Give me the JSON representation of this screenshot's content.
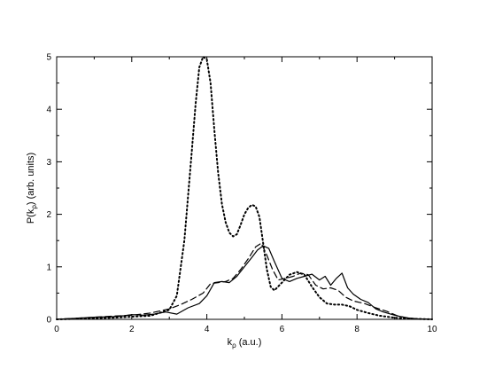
{
  "chart_data": {
    "type": "line",
    "title": "",
    "xlabel": {
      "main": "k",
      "sub": "ρ",
      "suffix": " (a.u.)"
    },
    "ylabel": {
      "main": "P(k",
      "sub": "ρ",
      "suffix": ") (arb. units)"
    },
    "xlim": [
      0,
      10
    ],
    "ylim": [
      0,
      5
    ],
    "xticks": [
      0,
      2,
      4,
      6,
      8,
      10
    ],
    "yticks": [
      0,
      1,
      2,
      3,
      4,
      5
    ],
    "grid": false,
    "legend": "none",
    "series": [
      {
        "style": "dotted",
        "color": "#000000",
        "x": [
          0.0,
          0.5,
          1.0,
          1.5,
          2.0,
          2.5,
          3.0,
          3.2,
          3.4,
          3.6,
          3.7,
          3.8,
          3.9,
          4.0,
          4.1,
          4.2,
          4.3,
          4.4,
          4.5,
          4.6,
          4.7,
          4.8,
          4.9,
          5.0,
          5.1,
          5.2,
          5.3,
          5.4,
          5.5,
          5.6,
          5.7,
          5.8,
          6.0,
          6.2,
          6.4,
          6.6,
          6.8,
          7.0,
          7.2,
          7.4,
          7.6,
          7.8,
          8.0,
          8.3,
          8.6,
          9.0,
          9.5,
          10.0
        ],
        "y": [
          0.0,
          0.01,
          0.02,
          0.03,
          0.05,
          0.07,
          0.18,
          0.45,
          1.5,
          3.2,
          4.1,
          4.8,
          5.0,
          4.95,
          4.5,
          3.6,
          2.8,
          2.2,
          1.85,
          1.65,
          1.58,
          1.62,
          1.8,
          2.0,
          2.12,
          2.18,
          2.15,
          1.95,
          1.45,
          0.95,
          0.62,
          0.55,
          0.7,
          0.85,
          0.9,
          0.85,
          0.62,
          0.42,
          0.3,
          0.28,
          0.28,
          0.25,
          0.18,
          0.12,
          0.07,
          0.03,
          0.01,
          0.0
        ]
      },
      {
        "style": "dashed",
        "color": "#000000",
        "x": [
          0.0,
          0.5,
          1.0,
          1.5,
          2.0,
          2.5,
          3.0,
          3.3,
          3.6,
          3.9,
          4.1,
          4.3,
          4.5,
          4.7,
          4.9,
          5.1,
          5.3,
          5.45,
          5.6,
          5.75,
          5.9,
          6.1,
          6.3,
          6.5,
          6.7,
          6.9,
          7.1,
          7.3,
          7.5,
          7.7,
          7.9,
          8.2,
          8.5,
          8.8,
          9.1,
          9.5,
          10.0
        ],
        "y": [
          0.0,
          0.02,
          0.04,
          0.06,
          0.08,
          0.12,
          0.2,
          0.28,
          0.38,
          0.5,
          0.68,
          0.7,
          0.72,
          0.78,
          0.95,
          1.15,
          1.38,
          1.45,
          1.22,
          0.95,
          0.75,
          0.78,
          0.82,
          0.88,
          0.85,
          0.65,
          0.58,
          0.6,
          0.55,
          0.42,
          0.35,
          0.3,
          0.22,
          0.15,
          0.06,
          0.01,
          0.0
        ]
      },
      {
        "style": "solid",
        "color": "#000000",
        "x": [
          0.0,
          0.5,
          1.0,
          1.5,
          1.8,
          2.0,
          2.3,
          2.6,
          2.9,
          3.2,
          3.5,
          3.8,
          4.0,
          4.2,
          4.4,
          4.6,
          4.8,
          5.0,
          5.2,
          5.35,
          5.5,
          5.65,
          5.8,
          6.0,
          6.2,
          6.4,
          6.6,
          6.8,
          7.0,
          7.15,
          7.3,
          7.45,
          7.6,
          7.75,
          7.9,
          8.1,
          8.3,
          8.5,
          8.7,
          9.0,
          9.3,
          9.6,
          10.0
        ],
        "y": [
          0.0,
          0.02,
          0.04,
          0.05,
          0.07,
          0.09,
          0.08,
          0.1,
          0.14,
          0.1,
          0.22,
          0.3,
          0.45,
          0.7,
          0.72,
          0.7,
          0.82,
          1.0,
          1.18,
          1.32,
          1.4,
          1.35,
          1.1,
          0.78,
          0.72,
          0.78,
          0.82,
          0.86,
          0.75,
          0.82,
          0.65,
          0.78,
          0.88,
          0.6,
          0.48,
          0.38,
          0.32,
          0.2,
          0.14,
          0.08,
          0.03,
          0.01,
          0.0
        ]
      }
    ]
  }
}
